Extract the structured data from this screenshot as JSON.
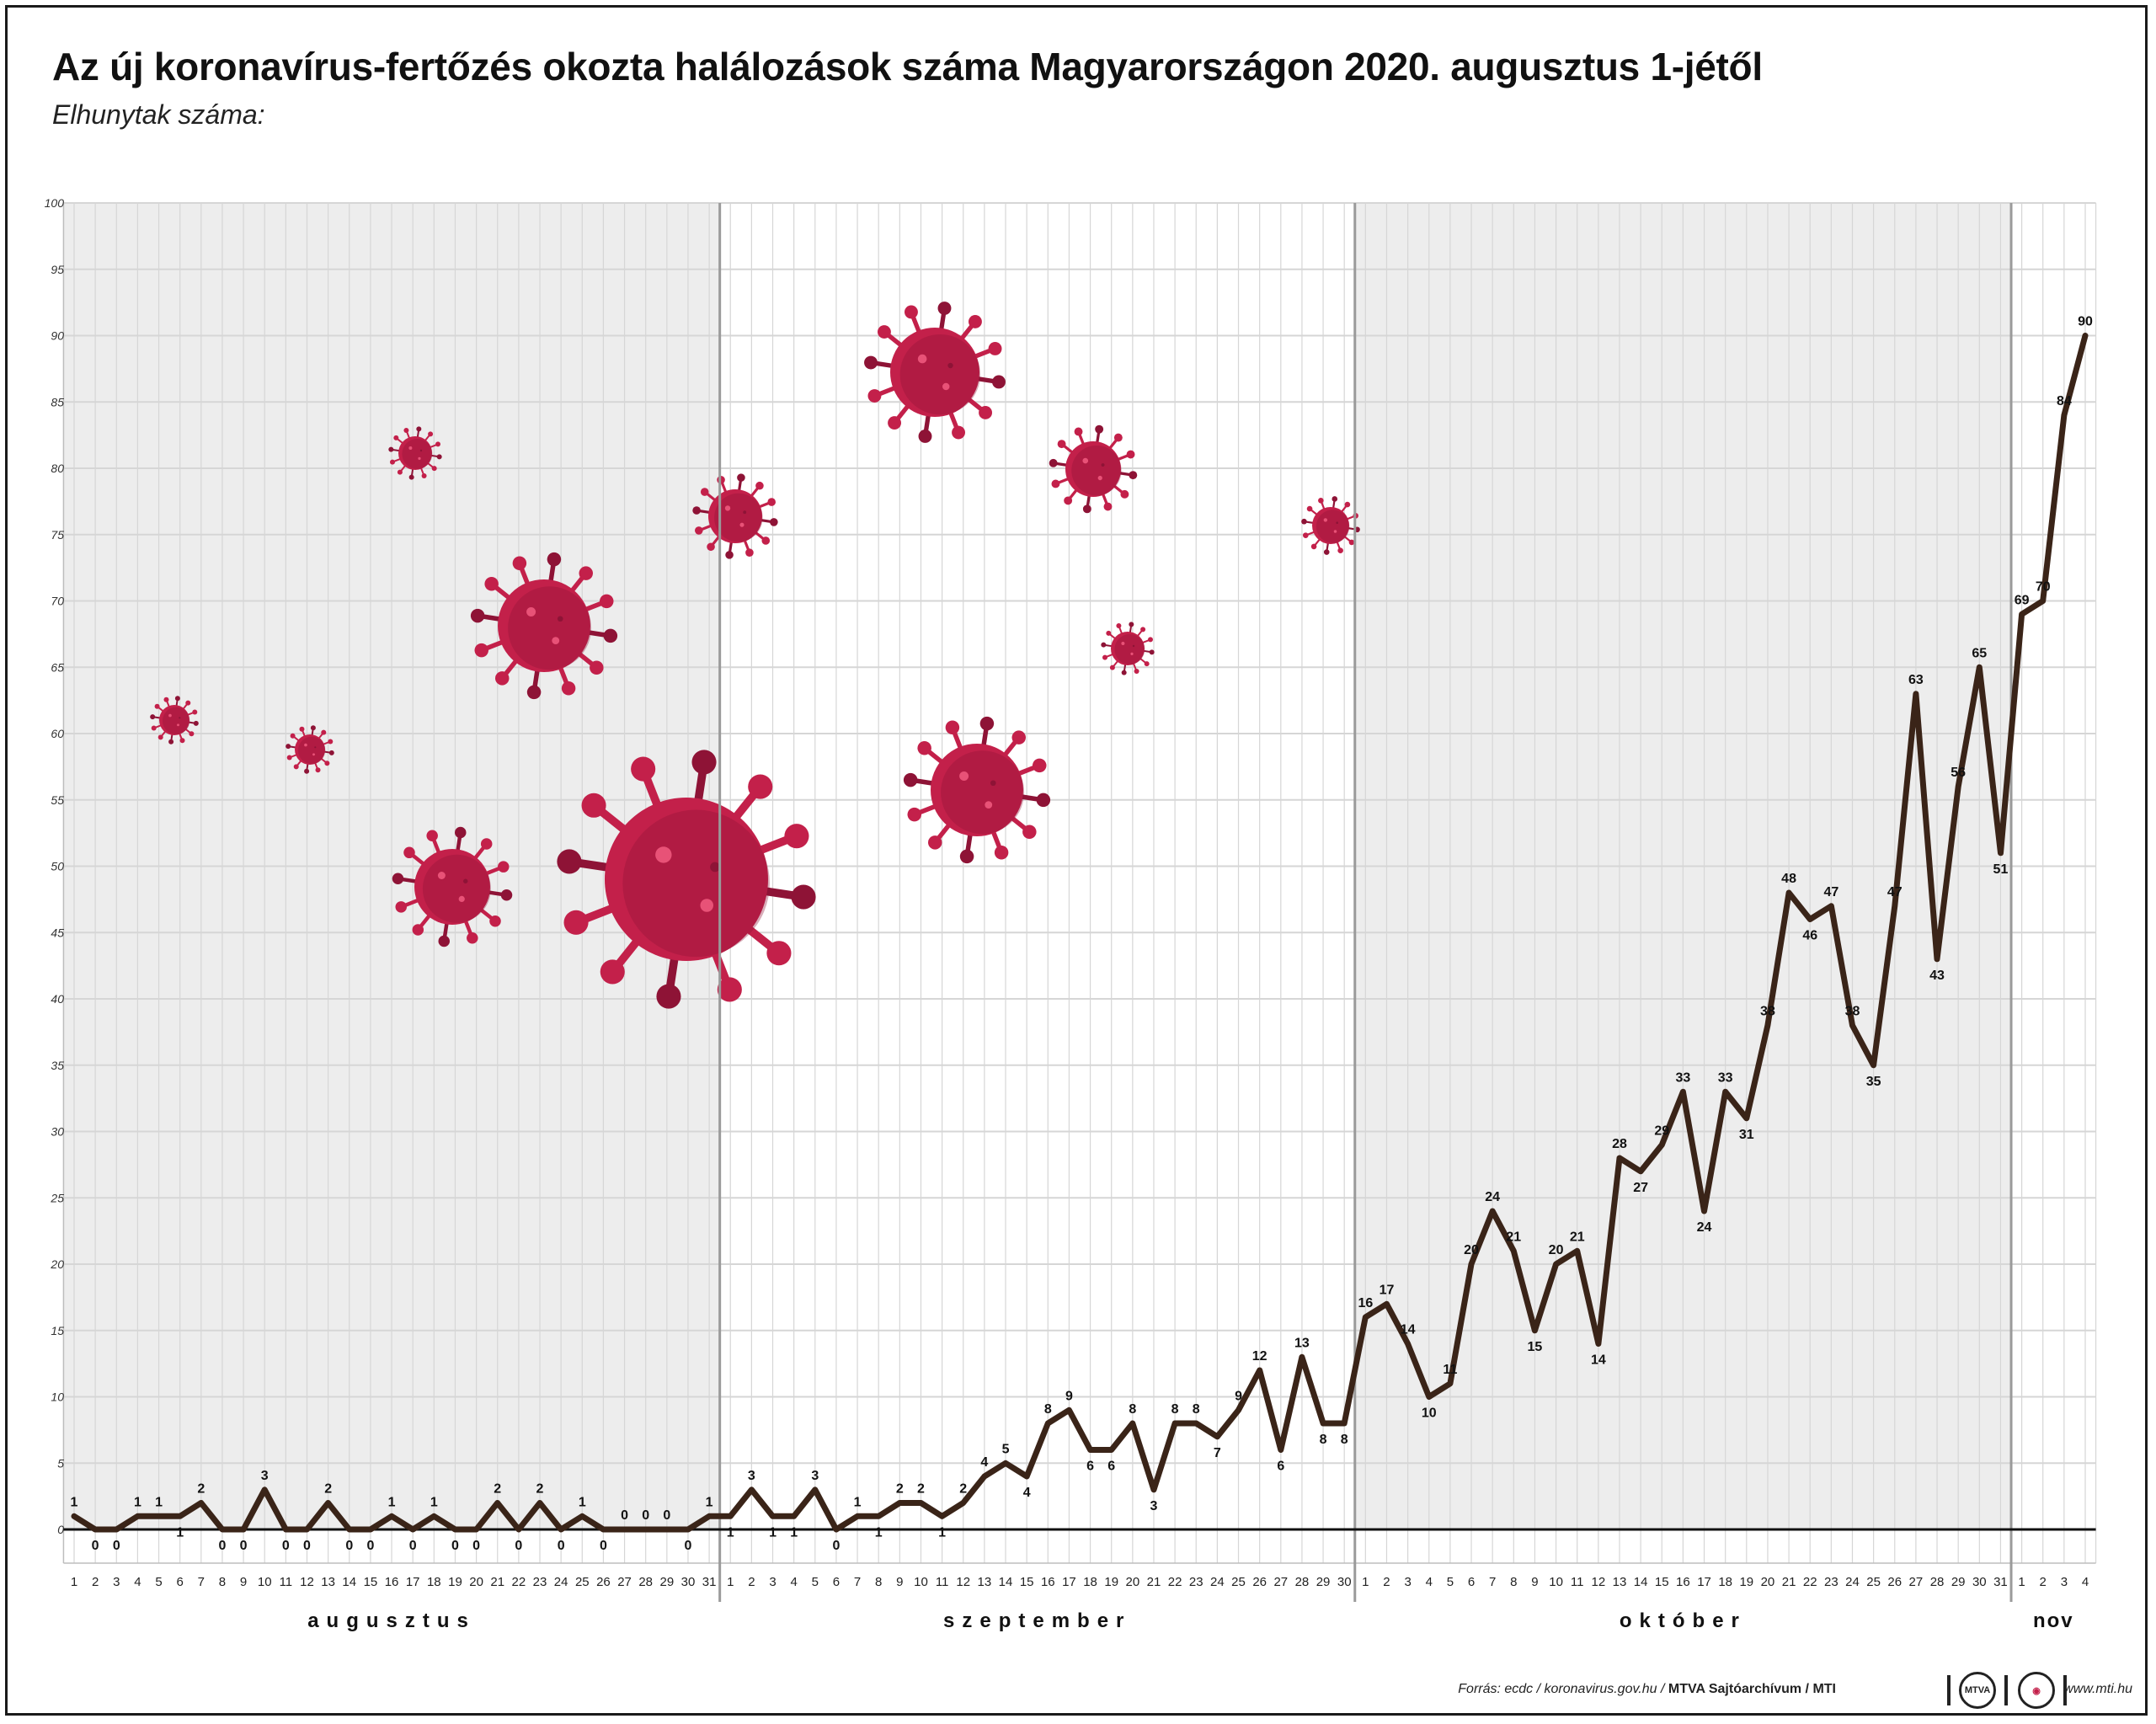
{
  "title": "Az új koronavírus-fertőzés okozta halálozások száma Magyarországon 2020. augusztus 1-jétől",
  "subtitle": "Elhunytak száma:",
  "footer": {
    "source_plain": "Forrás: ecdc / koronavirus.gov.hu / ",
    "source_bold": "MTVA Sajtóarchívum / MTI",
    "logo_label": "MTVA",
    "site": "www.mti.hu"
  },
  "colors": {
    "line": "#3a2418",
    "virus": "#c3204a",
    "virus_dark": "#8e1336",
    "virus_light": "#e85277",
    "grid": "#d6d6d6",
    "shade": "#ededed"
  },
  "chart_data": {
    "type": "line",
    "ylim": [
      0,
      100
    ],
    "yticks": [
      0,
      5,
      10,
      15,
      20,
      25,
      30,
      35,
      40,
      45,
      50,
      55,
      60,
      65,
      70,
      75,
      80,
      85,
      90,
      95,
      100
    ],
    "months": [
      {
        "name": "augusztus",
        "days": 31,
        "shaded": true
      },
      {
        "name": "szeptember",
        "days": 30,
        "shaded": false
      },
      {
        "name": "október",
        "days": 31,
        "shaded": true
      },
      {
        "name": "nov",
        "days": 4,
        "shaded": false
      }
    ],
    "series": [
      {
        "values": [
          1,
          0,
          0,
          1,
          1,
          1,
          2,
          0,
          0,
          3,
          0,
          0,
          2,
          0,
          0,
          1,
          0,
          1,
          0,
          0,
          2,
          0,
          2,
          0,
          1,
          0,
          0,
          0,
          0,
          0,
          1,
          1,
          3,
          1,
          1,
          3,
          0,
          1,
          1,
          2,
          2,
          1,
          2,
          4,
          5,
          4,
          8,
          9,
          6,
          6,
          8,
          3,
          8,
          8,
          7,
          9,
          12,
          6,
          13,
          8,
          8,
          16,
          17,
          14,
          10,
          11,
          20,
          24,
          21,
          15,
          20,
          21,
          14,
          28,
          27,
          29,
          33,
          24,
          33,
          31,
          38,
          48,
          46,
          47,
          38,
          35,
          47,
          63,
          43,
          56,
          65,
          51,
          69,
          70,
          84,
          90
        ]
      }
    ]
  }
}
